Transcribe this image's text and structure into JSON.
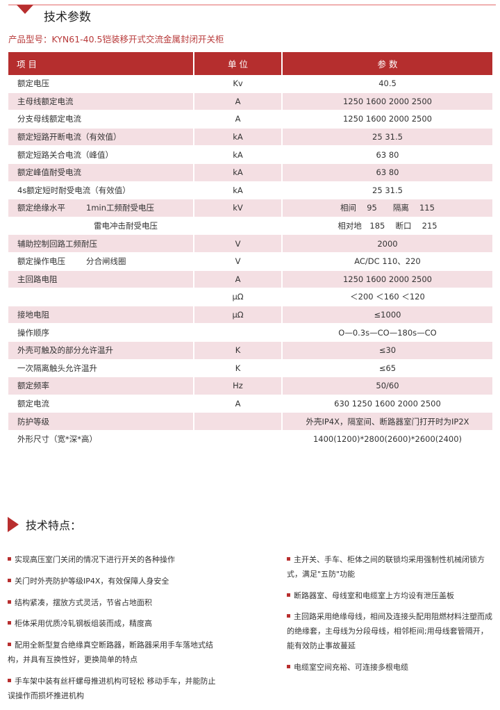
{
  "section1": {
    "title": "技术参数",
    "model": "产品型号：KYN61-40.5铠装移开式交流金属封闭开关柜"
  },
  "table": {
    "headers": [
      "项 目",
      "单 位",
      "参 数"
    ],
    "rows": [
      {
        "item": "额定电压",
        "sub": "",
        "unit": "Kv",
        "value": "40.5"
      },
      {
        "item": "主母线额定电流",
        "sub": "",
        "unit": "A",
        "value": "1250 1600 2000 2500"
      },
      {
        "item": "分支母线额定电流",
        "sub": "",
        "unit": "A",
        "value": "1250 1600 2000 2500"
      },
      {
        "item": "额定短路开断电流（有效值）",
        "sub": "",
        "unit": "kA",
        "value": "25 31.5"
      },
      {
        "item": "额定短路关合电流（峰值）",
        "sub": "",
        "unit": "kA",
        "value": "63 80"
      },
      {
        "item": "额定峰值耐受电流",
        "sub": "",
        "unit": "kA",
        "value": "63 80"
      },
      {
        "item": "4s额定短时耐受电流（有效值）",
        "sub": "",
        "unit": "kA",
        "value": "25 31.5"
      },
      {
        "item": "额定绝缘水平",
        "sub": "1min工频耐受电压",
        "unit": "kV",
        "value": "相间　 95　　隔离　 115"
      },
      {
        "item": "",
        "sub": "雷电冲击耐受电压",
        "unit": "",
        "value": "相对地　185　 断口　 215"
      },
      {
        "item": "辅助控制回路工频耐压",
        "sub": "",
        "unit": "V",
        "value": "2000"
      },
      {
        "item": "额定操作电压",
        "sub": "分合闸线圈",
        "unit": "V",
        "value": "AC/DC 110、220"
      },
      {
        "item": "主回路电阻",
        "sub": "",
        "unit": "A",
        "value": "1250 1600 2000  2500"
      },
      {
        "item": "",
        "sub": "",
        "unit": "μΩ",
        "value": "＜200  ＜160 ＜120"
      },
      {
        "item": "接地电阻",
        "sub": "",
        "unit": "μΩ",
        "value": "≤1000"
      },
      {
        "item": "操作顺序",
        "sub": "",
        "unit": "",
        "value": "O—0.3s—CO—180s—CO"
      },
      {
        "item": "外壳可触及的部分允许温升",
        "sub": "",
        "unit": "K",
        "value": "≤30"
      },
      {
        "item": "一次隔离触头允许温升",
        "sub": "",
        "unit": "K",
        "value": "≤65"
      },
      {
        "item": "额定频率",
        "sub": "",
        "unit": "Hz",
        "value": "50/60"
      },
      {
        "item": "额定电流",
        "sub": "",
        "unit": "A",
        "value": "630 1250 1600 2000 2500"
      },
      {
        "item": "防护等级",
        "sub": "",
        "unit": "",
        "value": "外壳IP4X，隔室间、断路器室门打开时为IP2X"
      },
      {
        "item": "外形尺寸（宽*深*高）",
        "sub": "",
        "unit": "",
        "value": "1400(1200)*2800(2600)*2600(2400)"
      }
    ]
  },
  "section2": {
    "title": "技术特点：",
    "left": [
      "实现高压室门关闭的情况下进行开关的各种操作",
      "关门时外壳防护等级IP4X，有效保障人身安全",
      "结构紧凑，摆放方式灵活，节省占地面积",
      "柜体采用优质冷轧钢板组装而成，精度高",
      "配用全新型复合绝缘真空断路器，断路器采用手车落地式结构，并具有互换性好，更换简单的特点",
      "手车架中装有丝杆螺母推进机构可轻松 移动手车，并能防止误操作而损坏推进机构"
    ],
    "right": [
      "主开关、手车、柜体之间的联锁均采用强制性机械闭锁方式，满足\"五防\"功能",
      "断路器室、母线室和电缆室上方均设有泄压盖板",
      "主回路采用绝缘母线，相间及连接头配用阻燃材料注塑而成的绝缘套，主母线为分段母线，相邻柜间;用母线套管隔开，能有效防止事故蔓延",
      "电缆室空间充裕、可连接多根电缆"
    ]
  },
  "colors": {
    "accent": "#b52e2e",
    "row_pink": "#f4dfe3"
  }
}
